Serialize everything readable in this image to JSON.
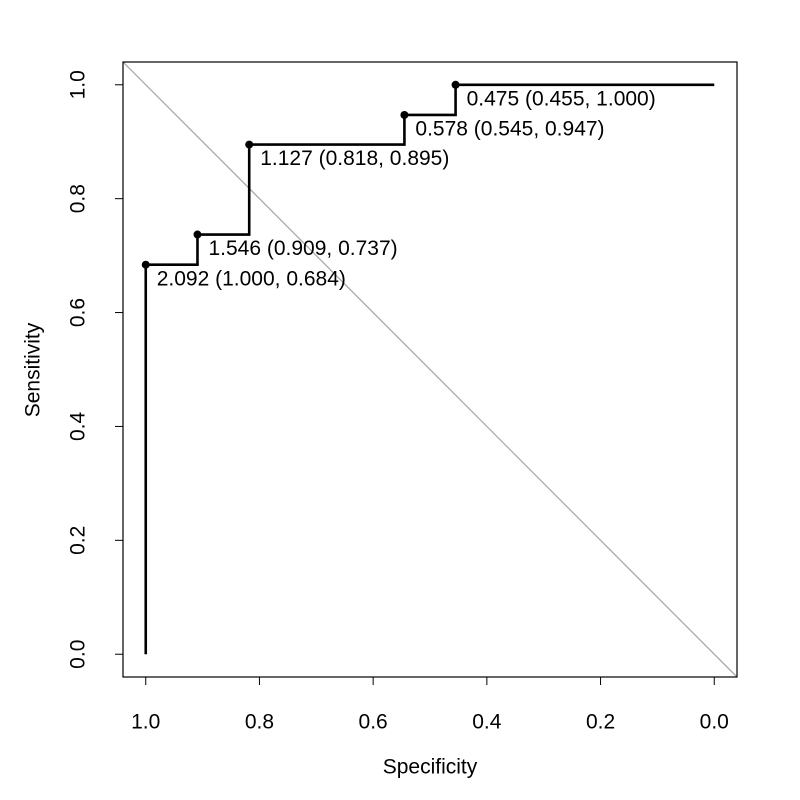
{
  "chart_data": {
    "type": "roc",
    "xlabel": "Specificity",
    "ylabel": "Sensitivity",
    "x": [
      1.0,
      1.0,
      0.909,
      0.909,
      0.818,
      0.818,
      0.545,
      0.545,
      0.455,
      0.455,
      0.0
    ],
    "values": [
      0.0,
      0.684,
      0.684,
      0.737,
      0.737,
      0.895,
      0.895,
      0.947,
      0.947,
      1.0,
      1.0
    ],
    "color": "#000000",
    "diagonal_color": "#aaaaaa",
    "xlim": [
      1.04,
      -0.04
    ],
    "ylim": [
      -0.04,
      1.04
    ],
    "xticks": [
      {
        "value": 1.0,
        "label": "1.0"
      },
      0.8,
      0.6,
      0.4,
      0.2,
      {
        "value": 0.0,
        "label": "0.0"
      }
    ],
    "yticks": [
      {
        "value": 0.0,
        "label": "0.0"
      },
      0.2,
      0.4,
      0.6,
      0.8,
      {
        "value": 1.0,
        "label": "1.0"
      }
    ],
    "thresholds": [
      {
        "label": "2.092 (1.000, 0.684)",
        "specificity": 1.0,
        "sensitivity": 0.684
      },
      {
        "label": "1.546 (0.909, 0.737)",
        "specificity": 0.909,
        "sensitivity": 0.737
      },
      {
        "label": "1.127 (0.818, 0.895)",
        "specificity": 0.818,
        "sensitivity": 0.895
      },
      {
        "label": "0.578 (0.545, 0.947)",
        "specificity": 0.545,
        "sensitivity": 0.947
      },
      {
        "label": "0.475 (0.455, 1.000)",
        "specificity": 0.455,
        "sensitivity": 1.0
      }
    ]
  }
}
